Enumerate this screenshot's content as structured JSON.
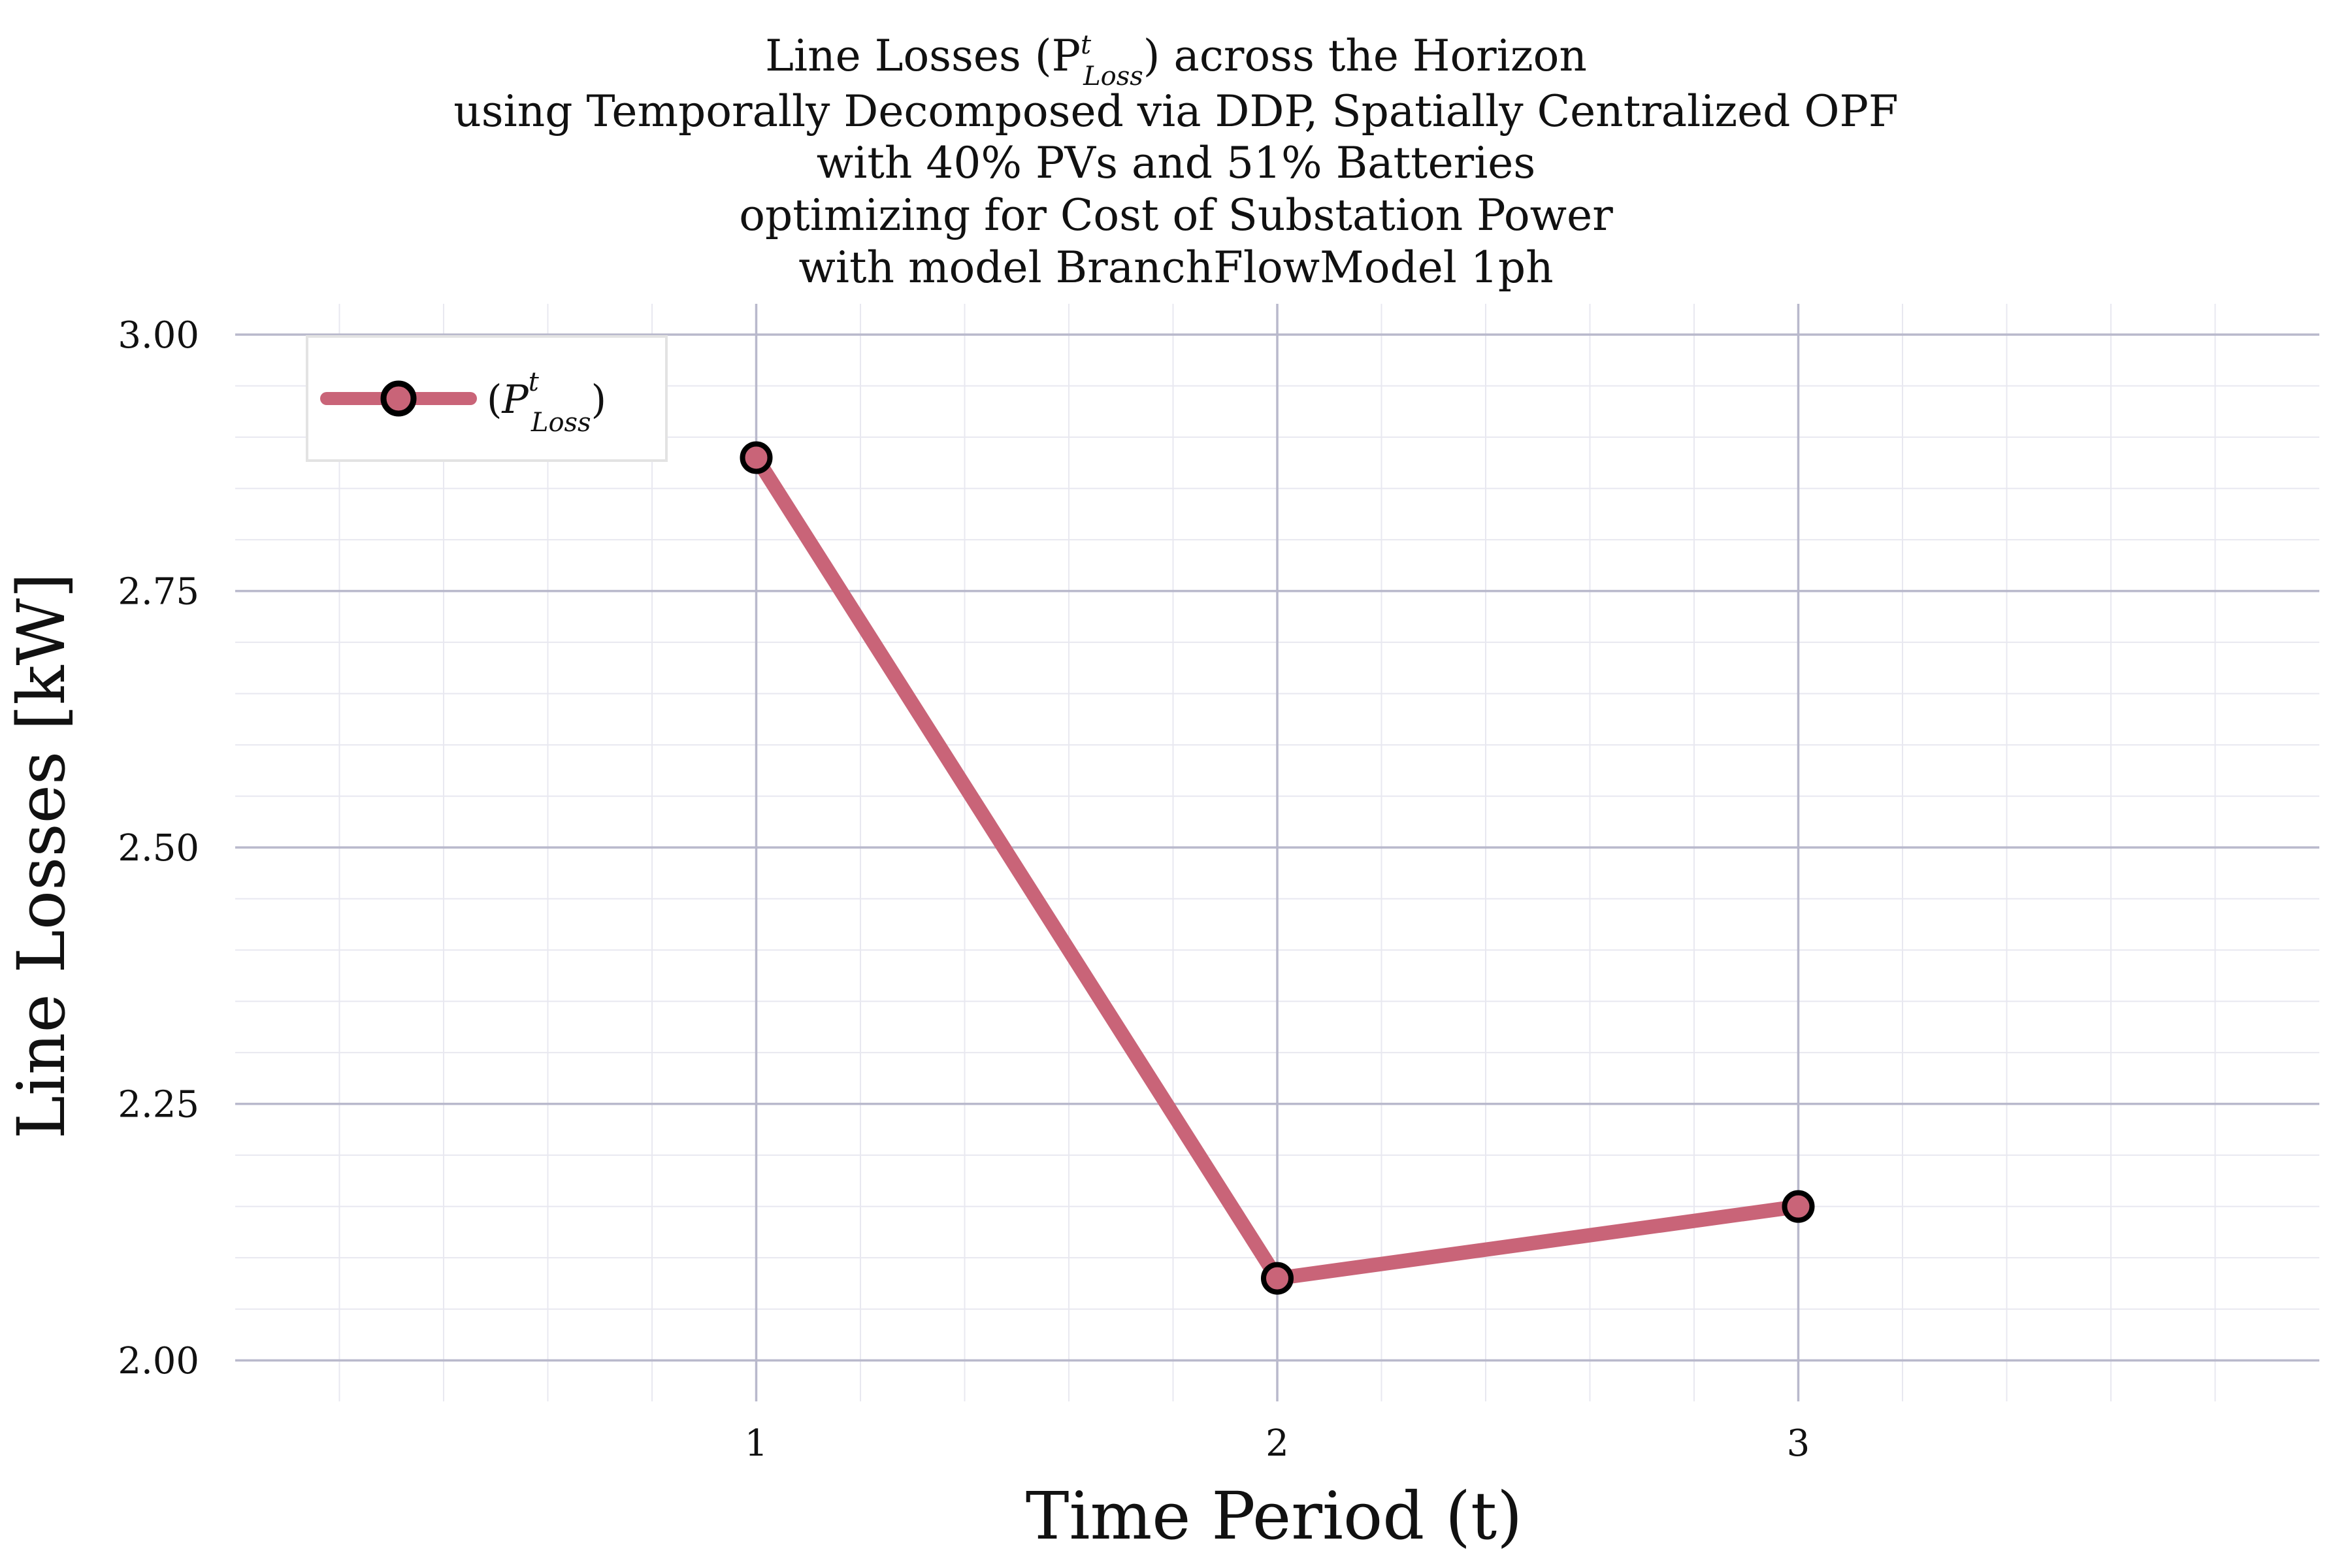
{
  "chart_data": {
    "type": "line",
    "title_lines": [
      "Line Losses (P",
      "using Temporally Decomposed via DDP, Spatially Centralized OPF",
      "with 40% PVs and 51% Batteries",
      "optimizing for Cost of Substation Power",
      "with model BranchFlowModel 1ph"
    ],
    "title_line1_suffix": ") across the Horizon",
    "title_symbol": {
      "base": "P",
      "superscript": "t",
      "subscript": "Loss"
    },
    "xlabel": "Time Period (t)",
    "ylabel": "Line Losses [kW]",
    "x": [
      1,
      2,
      3
    ],
    "series": [
      {
        "name": "(P_Loss^t)",
        "legend_parts": {
          "open": "(",
          "base": "P",
          "superscript": "t",
          "subscript": "Loss",
          "close": ")"
        },
        "values": [
          2.88,
          2.08,
          2.15
        ],
        "color": "#c96478"
      }
    ],
    "xlim": [
      0,
      4
    ],
    "ylim": [
      1.96,
      3.03
    ],
    "xticks": [
      1,
      2,
      3
    ],
    "xtick_labels": [
      "1",
      "2",
      "3"
    ],
    "yticks": [
      2.0,
      2.25,
      2.5,
      2.75,
      3.0
    ],
    "ytick_labels": [
      "2.00",
      "2.25",
      "2.50",
      "2.75",
      "3.00"
    ],
    "grid": true,
    "legend_position": "top-left",
    "marker_fill": "#c96478",
    "marker_edge": "#000000",
    "grid_major_color": "#b9b9cc",
    "grid_minor_color": "#e8e8f0"
  }
}
